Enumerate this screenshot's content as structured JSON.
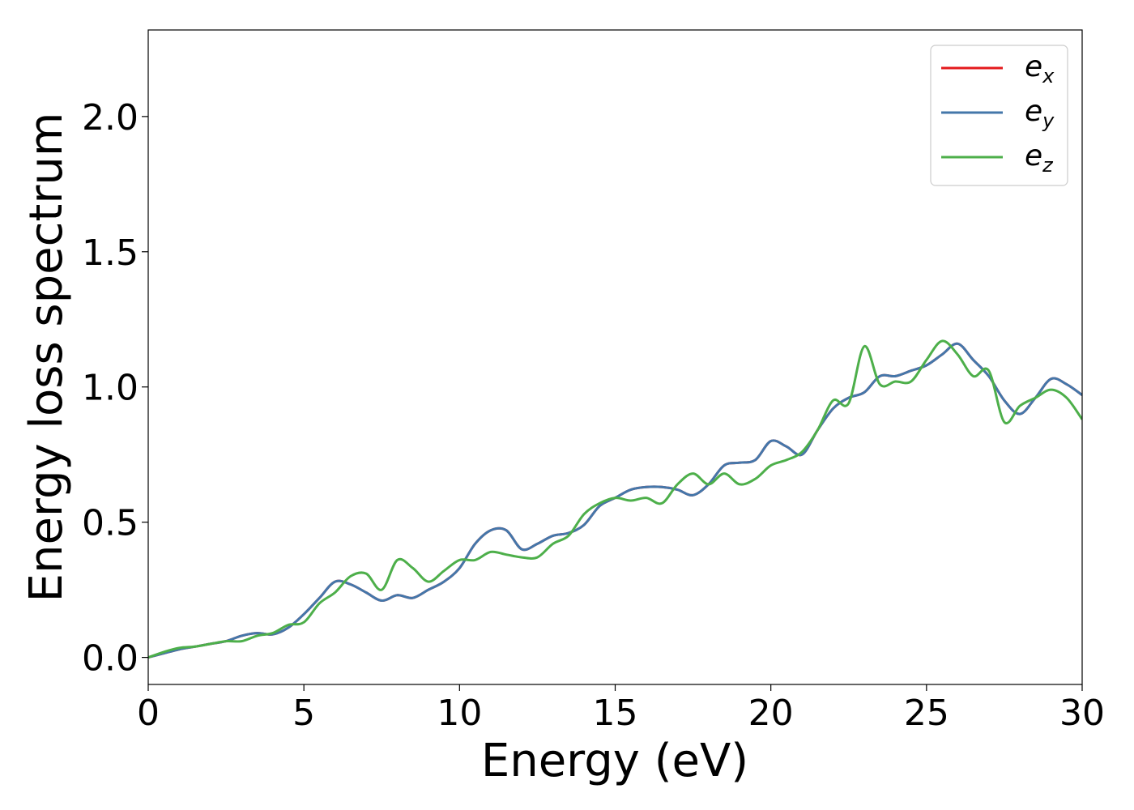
{
  "chart_data": {
    "type": "line",
    "title": "",
    "xlabel": "Energy (eV)",
    "ylabel": "Energy loss spectrum",
    "xlim": [
      0,
      30
    ],
    "ylim": [
      -0.1,
      2.32
    ],
    "xticks": [
      0,
      5,
      10,
      15,
      20,
      25,
      30
    ],
    "xtick_labels": [
      "0",
      "5",
      "10",
      "15",
      "20",
      "25",
      "30"
    ],
    "yticks": [
      0.0,
      0.5,
      1.0,
      1.5,
      2.0
    ],
    "ytick_labels": [
      "0.0",
      "0.5",
      "1.0",
      "1.5",
      "2.0"
    ],
    "grid": false,
    "legend_position": "top-right",
    "series": [
      {
        "name": "e_x",
        "legend_base": "e",
        "legend_sub": "x",
        "color": "#e41a1c",
        "x": [
          0,
          0.5,
          1,
          1.5,
          2,
          2.5,
          3,
          3.5,
          4,
          4.5,
          5,
          5.5,
          6,
          6.5,
          7,
          7.5,
          8,
          8.5,
          9,
          9.5,
          10,
          10.5,
          11,
          11.5,
          12,
          12.5,
          13,
          13.5,
          14,
          14.5,
          15,
          15.5,
          16,
          16.5,
          17,
          17.5,
          18,
          18.5,
          19,
          19.5,
          20,
          20.5,
          21,
          21.5,
          22,
          22.5,
          23,
          23.5,
          24,
          24.5,
          25,
          25.5,
          26,
          26.5,
          27,
          27.5,
          28,
          28.5,
          29,
          29.5,
          30
        ],
        "y": [
          0.0,
          0.015,
          0.03,
          0.04,
          0.05,
          0.06,
          0.08,
          0.09,
          0.085,
          0.11,
          0.16,
          0.22,
          0.28,
          0.27,
          0.24,
          0.21,
          0.23,
          0.22,
          0.25,
          0.28,
          0.33,
          0.42,
          0.47,
          0.47,
          0.4,
          0.42,
          0.45,
          0.46,
          0.49,
          0.56,
          0.59,
          0.62,
          0.63,
          0.63,
          0.62,
          0.6,
          0.64,
          0.71,
          0.72,
          0.73,
          0.8,
          0.78,
          0.75,
          0.84,
          0.92,
          0.96,
          0.98,
          1.04,
          1.04,
          1.06,
          1.08,
          1.12,
          1.16,
          1.1,
          1.04,
          0.95,
          0.9,
          0.96,
          1.03,
          1.01,
          0.97
        ]
      },
      {
        "name": "e_y",
        "legend_base": "e",
        "legend_sub": "y",
        "color": "#4477aa",
        "x": [
          0,
          0.5,
          1,
          1.5,
          2,
          2.5,
          3,
          3.5,
          4,
          4.5,
          5,
          5.5,
          6,
          6.5,
          7,
          7.5,
          8,
          8.5,
          9,
          9.5,
          10,
          10.5,
          11,
          11.5,
          12,
          12.5,
          13,
          13.5,
          14,
          14.5,
          15,
          15.5,
          16,
          16.5,
          17,
          17.5,
          18,
          18.5,
          19,
          19.5,
          20,
          20.5,
          21,
          21.5,
          22,
          22.5,
          23,
          23.5,
          24,
          24.5,
          25,
          25.5,
          26,
          26.5,
          27,
          27.5,
          28,
          28.5,
          29,
          29.5,
          30
        ],
        "y": [
          0.0,
          0.015,
          0.03,
          0.04,
          0.05,
          0.06,
          0.08,
          0.09,
          0.085,
          0.11,
          0.16,
          0.22,
          0.28,
          0.27,
          0.24,
          0.21,
          0.23,
          0.22,
          0.25,
          0.28,
          0.33,
          0.42,
          0.47,
          0.47,
          0.4,
          0.42,
          0.45,
          0.46,
          0.49,
          0.56,
          0.59,
          0.62,
          0.63,
          0.63,
          0.62,
          0.6,
          0.64,
          0.71,
          0.72,
          0.73,
          0.8,
          0.78,
          0.75,
          0.84,
          0.92,
          0.96,
          0.98,
          1.04,
          1.04,
          1.06,
          1.08,
          1.12,
          1.16,
          1.1,
          1.04,
          0.95,
          0.9,
          0.96,
          1.03,
          1.01,
          0.97
        ]
      },
      {
        "name": "e_z",
        "legend_base": "e",
        "legend_sub": "z",
        "color": "#4daf4a",
        "x": [
          0,
          0.5,
          1,
          1.5,
          2,
          2.5,
          3,
          3.5,
          4,
          4.5,
          5,
          5.5,
          6,
          6.5,
          7,
          7.5,
          8,
          8.5,
          9,
          9.5,
          10,
          10.5,
          11,
          11.5,
          12,
          12.5,
          13,
          13.5,
          14,
          14.5,
          15,
          15.5,
          16,
          16.5,
          17,
          17.5,
          18,
          18.5,
          19,
          19.5,
          20,
          20.5,
          21,
          21.5,
          22,
          22.5,
          23,
          23.5,
          24,
          24.5,
          25,
          25.5,
          26,
          26.5,
          27,
          27.5,
          28,
          28.5,
          29,
          29.5,
          30
        ],
        "y": [
          0.0,
          0.02,
          0.035,
          0.04,
          0.05,
          0.06,
          0.06,
          0.08,
          0.09,
          0.12,
          0.13,
          0.2,
          0.24,
          0.3,
          0.31,
          0.25,
          0.36,
          0.33,
          0.28,
          0.32,
          0.36,
          0.36,
          0.39,
          0.38,
          0.37,
          0.37,
          0.42,
          0.45,
          0.53,
          0.57,
          0.59,
          0.58,
          0.59,
          0.57,
          0.64,
          0.68,
          0.64,
          0.68,
          0.64,
          0.66,
          0.71,
          0.73,
          0.76,
          0.84,
          0.95,
          0.94,
          1.15,
          1.01,
          1.02,
          1.02,
          1.1,
          1.17,
          1.12,
          1.04,
          1.06,
          0.87,
          0.93,
          0.96,
          0.99,
          0.96,
          0.88
        ]
      }
    ]
  }
}
